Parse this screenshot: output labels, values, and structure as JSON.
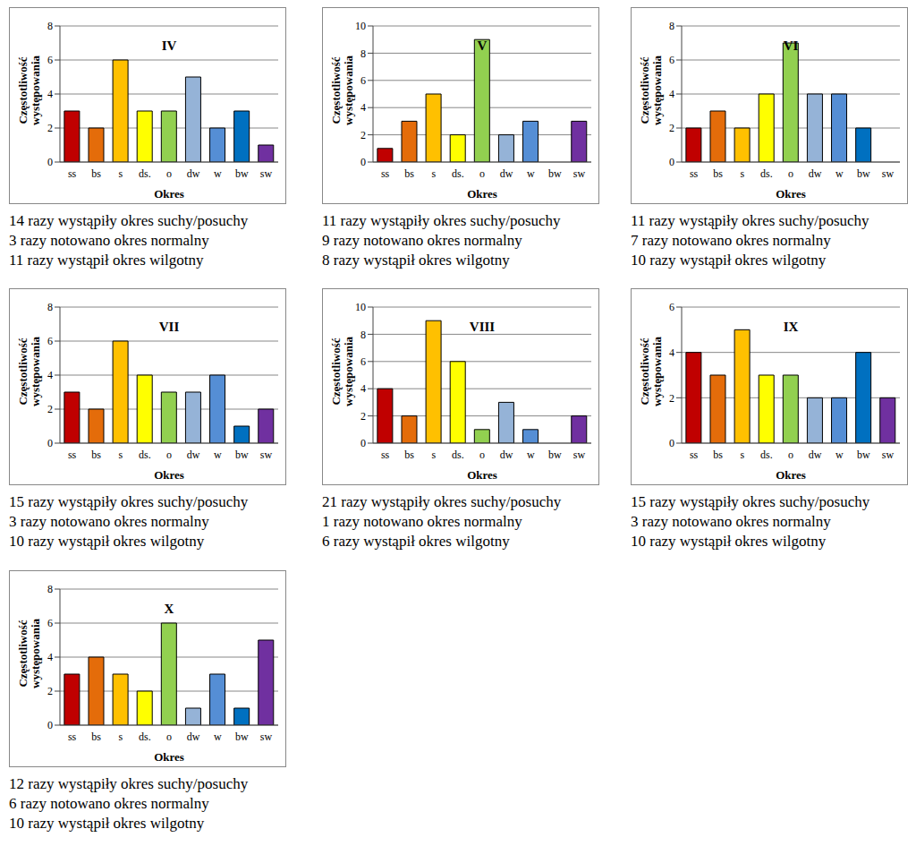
{
  "chart_data": [
    {
      "type": "bar",
      "title": "IV",
      "x_label": "Okres",
      "y_label": "Częstotliwość występowania",
      "categories": [
        "ss",
        "bs",
        "s",
        "ds.",
        "o",
        "dw",
        "w",
        "bw",
        "sw"
      ],
      "values": [
        3,
        2,
        6,
        3,
        3,
        5,
        2,
        3,
        1
      ],
      "colors": [
        "#c00000",
        "#e46c0a",
        "#ffc000",
        "#ffff00",
        "#92d050",
        "#95b3d7",
        "#558ed5",
        "#0070c0",
        "#7030a0"
      ],
      "ylim": [
        0,
        8
      ],
      "yticks": [
        0,
        2,
        4,
        6,
        8
      ],
      "grid": true,
      "annotations": [
        "14 razy wystąpiły okres suchy/posuchy",
        "3 razy notowano okres normalny",
        "11 razy wystąpił okres wilgotny"
      ]
    },
    {
      "type": "bar",
      "title": "V",
      "x_label": "Okres",
      "y_label": "Częstotliwość występowania",
      "categories": [
        "ss",
        "bs",
        "s",
        "ds.",
        "o",
        "dw",
        "w",
        "bw",
        "sw"
      ],
      "values": [
        1,
        3,
        5,
        2,
        9,
        2,
        3,
        0,
        3
      ],
      "colors": [
        "#c00000",
        "#e46c0a",
        "#ffc000",
        "#ffff00",
        "#92d050",
        "#95b3d7",
        "#558ed5",
        "#0070c0",
        "#7030a0"
      ],
      "ylim": [
        0,
        10
      ],
      "yticks": [
        0,
        2,
        4,
        6,
        8,
        10
      ],
      "grid": true,
      "annotations": [
        "11 razy wystąpiły okres suchy/posuchy",
        "9 razy notowano okres normalny",
        "8 razy wystąpił okres wilgotny"
      ]
    },
    {
      "type": "bar",
      "title": "VI",
      "x_label": "Okres",
      "y_label": "Częstotliwość występowania",
      "categories": [
        "ss",
        "bs",
        "s",
        "ds.",
        "o",
        "dw",
        "w",
        "bw",
        "sw"
      ],
      "values": [
        2,
        3,
        2,
        4,
        7,
        4,
        4,
        2,
        0
      ],
      "colors": [
        "#c00000",
        "#e46c0a",
        "#ffc000",
        "#ffff00",
        "#92d050",
        "#95b3d7",
        "#558ed5",
        "#0070c0",
        "#7030a0"
      ],
      "ylim": [
        0,
        8
      ],
      "yticks": [
        0,
        2,
        4,
        6,
        8
      ],
      "grid": true,
      "annotations": [
        "11 razy wystąpiły okres suchy/posuchy",
        "7 razy notowano okres normalny",
        "10 razy wystąpił okres wilgotny"
      ]
    },
    {
      "type": "bar",
      "title": "VII",
      "x_label": "Okres",
      "y_label": "Częstotliwość występowania",
      "categories": [
        "ss",
        "bs",
        "s",
        "ds.",
        "o",
        "dw",
        "w",
        "bw",
        "sw"
      ],
      "values": [
        3,
        2,
        6,
        4,
        3,
        3,
        4,
        1,
        2
      ],
      "colors": [
        "#c00000",
        "#e46c0a",
        "#ffc000",
        "#ffff00",
        "#92d050",
        "#95b3d7",
        "#558ed5",
        "#0070c0",
        "#7030a0"
      ],
      "ylim": [
        0,
        8
      ],
      "yticks": [
        0,
        2,
        4,
        6,
        8
      ],
      "grid": true,
      "annotations": [
        "15 razy wystąpiły okres suchy/posuchy",
        "3 razy notowano okres normalny",
        "10 razy wystąpił okres wilgotny"
      ]
    },
    {
      "type": "bar",
      "title": "VIII",
      "x_label": "Okres",
      "y_label": "Częstotliwość występowania",
      "categories": [
        "ss",
        "bs",
        "s",
        "ds.",
        "o",
        "dw",
        "w",
        "bw",
        "sw"
      ],
      "values": [
        4,
        2,
        9,
        6,
        1,
        3,
        1,
        0,
        2
      ],
      "colors": [
        "#c00000",
        "#e46c0a",
        "#ffc000",
        "#ffff00",
        "#92d050",
        "#95b3d7",
        "#558ed5",
        "#0070c0",
        "#7030a0"
      ],
      "ylim": [
        0,
        10
      ],
      "yticks": [
        0,
        2,
        4,
        6,
        8,
        10
      ],
      "grid": true,
      "annotations": [
        "21 razy wystąpiły okres suchy/posuchy",
        "1 razy notowano okres normalny",
        "6 razy wystąpił okres wilgotny"
      ]
    },
    {
      "type": "bar",
      "title": "IX",
      "x_label": "Okres",
      "y_label": "Częstotliwość występowania",
      "categories": [
        "ss",
        "bs",
        "s",
        "ds.",
        "o",
        "dw",
        "w",
        "bw",
        "sw"
      ],
      "values": [
        4,
        3,
        5,
        3,
        3,
        2,
        2,
        4,
        2
      ],
      "colors": [
        "#c00000",
        "#e46c0a",
        "#ffc000",
        "#ffff00",
        "#92d050",
        "#95b3d7",
        "#558ed5",
        "#0070c0",
        "#7030a0"
      ],
      "ylim": [
        0,
        6
      ],
      "yticks": [
        0,
        2,
        4,
        6
      ],
      "grid": true,
      "annotations": [
        "15 razy wystąpiły okres suchy/posuchy",
        "3 razy notowano okres normalny",
        "10 razy wystąpił okres wilgotny"
      ]
    },
    {
      "type": "bar",
      "title": "X",
      "x_label": "Okres",
      "y_label": "Częstotliwość występowania",
      "categories": [
        "ss",
        "bs",
        "s",
        "ds.",
        "o",
        "dw",
        "w",
        "bw",
        "sw"
      ],
      "values": [
        3,
        4,
        3,
        2,
        6,
        1,
        3,
        1,
        5
      ],
      "colors": [
        "#c00000",
        "#e46c0a",
        "#ffc000",
        "#ffff00",
        "#92d050",
        "#95b3d7",
        "#558ed5",
        "#0070c0",
        "#7030a0"
      ],
      "ylim": [
        0,
        8
      ],
      "yticks": [
        0,
        2,
        4,
        6,
        8
      ],
      "grid": true,
      "annotations": [
        "12 razy wystąpiły okres suchy/posuchy",
        "6 razy notowano okres normalny",
        "10 razy wystąpił okres wilgotny"
      ]
    }
  ]
}
